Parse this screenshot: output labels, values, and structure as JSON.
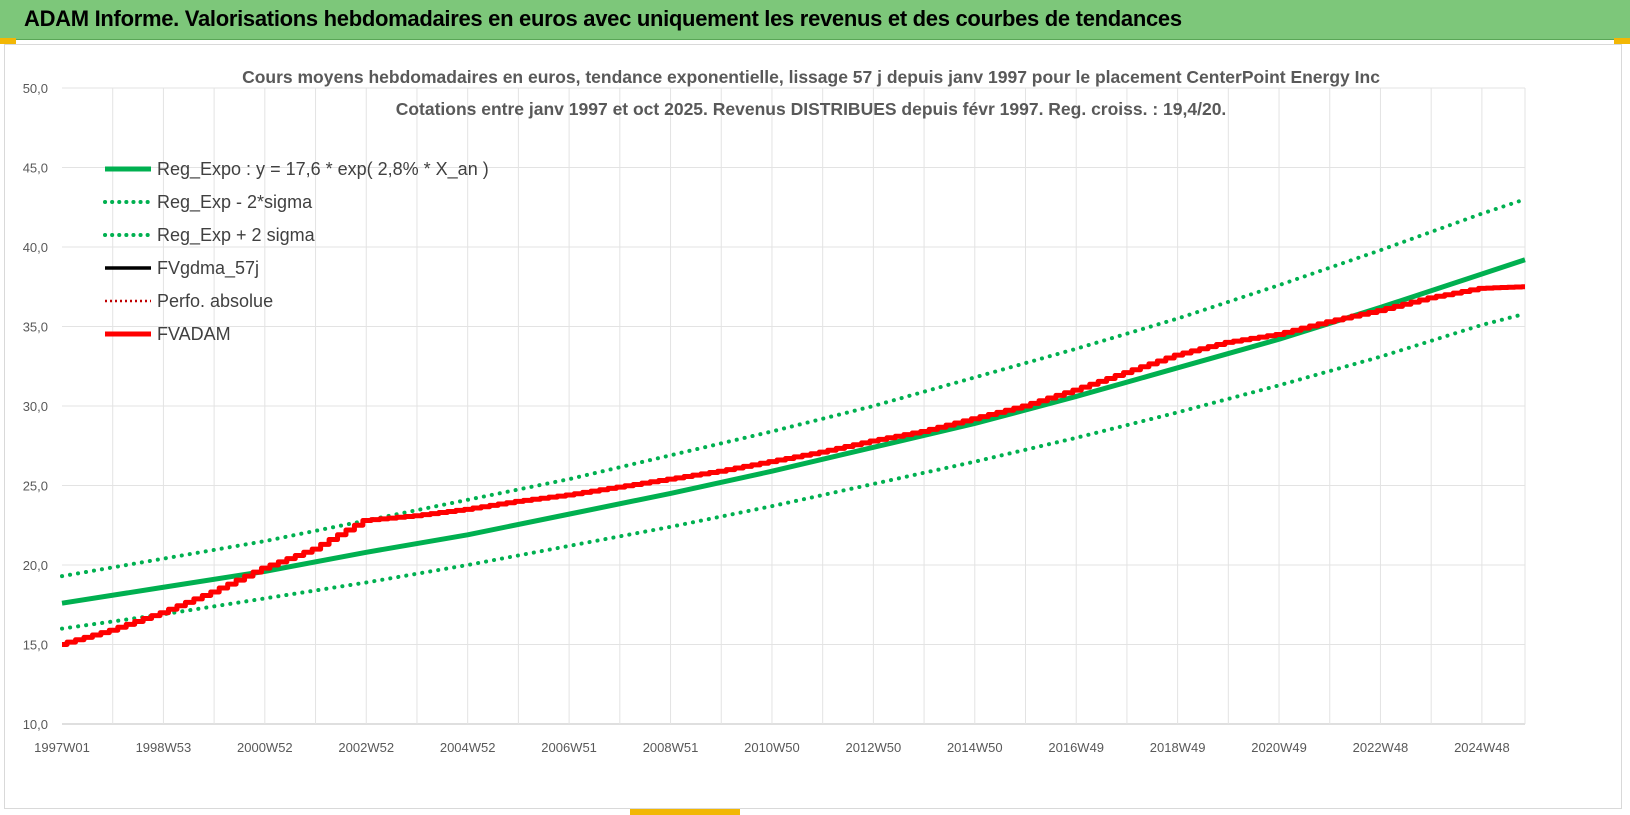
{
  "header": {
    "title": "ADAM Informe. Valorisations hebdomadaires en euros avec uniquement les revenus et des courbes de tendances"
  },
  "colors": {
    "header_bg": "#7dc77a",
    "trend": "#00b050",
    "trend_band": "#00b050",
    "fvadam": "#ff0000",
    "perfo": "#c00000",
    "fvgdma": "#000000"
  },
  "chart_data": {
    "type": "line",
    "title": "Cours moyens hebdomadaires en euros, tendance exponentielle, lissage 57 j depuis janv 1997 pour le placement CenterPoint Energy Inc",
    "subtitle": "Cotations entre janv 1997 et oct 2025. Revenus DISTRIBUES depuis févr 1997. Reg. croiss. : 19,4/20.",
    "xlabel": "",
    "ylabel": "",
    "ylim": [
      10,
      50
    ],
    "y_ticks": [
      "10,0",
      "15,0",
      "20,0",
      "25,0",
      "30,0",
      "35,0",
      "40,0",
      "45,0",
      "50,0"
    ],
    "x_ticks": [
      "1997W01",
      "1998W53",
      "2000W52",
      "2002W52",
      "2004W52",
      "2006W51",
      "2008W51",
      "2010W50",
      "2012W50",
      "2014W50",
      "2016W49",
      "2018W49",
      "2020W49",
      "2022W48",
      "2024W48"
    ],
    "x_tick_years": [
      1997.0,
      1999.0,
      2001.0,
      2003.0,
      2005.0,
      2007.0,
      2009.0,
      2011.0,
      2013.0,
      2015.0,
      2017.0,
      2019.0,
      2021.0,
      2023.0,
      2025.0
    ],
    "xlim": [
      1997.0,
      2025.85
    ],
    "grid": true,
    "legend_position": "top-left",
    "series": [
      {
        "name": "Reg_Expo : y = 17,6 * exp( 2,8% *  X_an )",
        "style": "solid-thick",
        "color": "#00b050",
        "x": [
          1997,
          1999,
          2001,
          2003,
          2005,
          2007,
          2009,
          2011,
          2013,
          2015,
          2017,
          2019,
          2021,
          2023,
          2025,
          2025.85
        ],
        "y": [
          17.6,
          18.6,
          19.6,
          20.8,
          21.9,
          23.2,
          24.5,
          25.9,
          27.4,
          28.9,
          30.6,
          32.4,
          34.2,
          36.2,
          38.3,
          39.2
        ]
      },
      {
        "name": "Reg_Exp - 2*sigma",
        "style": "dotted",
        "color": "#00b050",
        "x": [
          1997,
          1999,
          2001,
          2003,
          2005,
          2007,
          2009,
          2011,
          2013,
          2015,
          2017,
          2019,
          2021,
          2023,
          2025,
          2025.85
        ],
        "y": [
          16.0,
          16.9,
          17.9,
          18.9,
          20.0,
          21.2,
          22.4,
          23.7,
          25.1,
          26.5,
          28.0,
          29.6,
          31.3,
          33.1,
          35.1,
          35.8
        ]
      },
      {
        "name": "Reg_Exp + 2 sigma",
        "style": "dotted",
        "color": "#00b050",
        "x": [
          1997,
          1999,
          2001,
          2003,
          2005,
          2007,
          2009,
          2011,
          2013,
          2015,
          2017,
          2019,
          2021,
          2023,
          2025,
          2025.85
        ],
        "y": [
          19.3,
          20.4,
          21.5,
          22.8,
          24.1,
          25.4,
          26.9,
          28.4,
          30.0,
          31.8,
          33.6,
          35.5,
          37.6,
          39.8,
          42.1,
          43.0
        ]
      },
      {
        "name": "FVgdma_57j",
        "style": "solid",
        "color": "#000000",
        "x": [],
        "y": []
      },
      {
        "name": "Perfo. absolue",
        "style": "dotted-thin",
        "color": "#c00000",
        "x": [],
        "y": []
      },
      {
        "name": "FVADAM",
        "style": "solid-thick",
        "color": "#ff0000",
        "x": [
          1997,
          1998,
          1999,
          2000,
          2001,
          2002,
          2003,
          2004,
          2005,
          2006,
          2007,
          2008,
          2009,
          2010,
          2011,
          2012,
          2013,
          2014,
          2015,
          2016,
          2017,
          2018,
          2019,
          2020,
          2021,
          2022,
          2023,
          2024,
          2025,
          2025.85
        ],
        "y": [
          15.0,
          15.9,
          17.0,
          18.3,
          19.8,
          21.0,
          22.8,
          23.1,
          23.5,
          24.0,
          24.4,
          24.9,
          25.4,
          25.9,
          26.5,
          27.1,
          27.8,
          28.4,
          29.2,
          30.0,
          31.0,
          32.1,
          33.2,
          34.0,
          34.5,
          35.3,
          36.0,
          36.8,
          37.4,
          37.5
        ]
      }
    ]
  }
}
